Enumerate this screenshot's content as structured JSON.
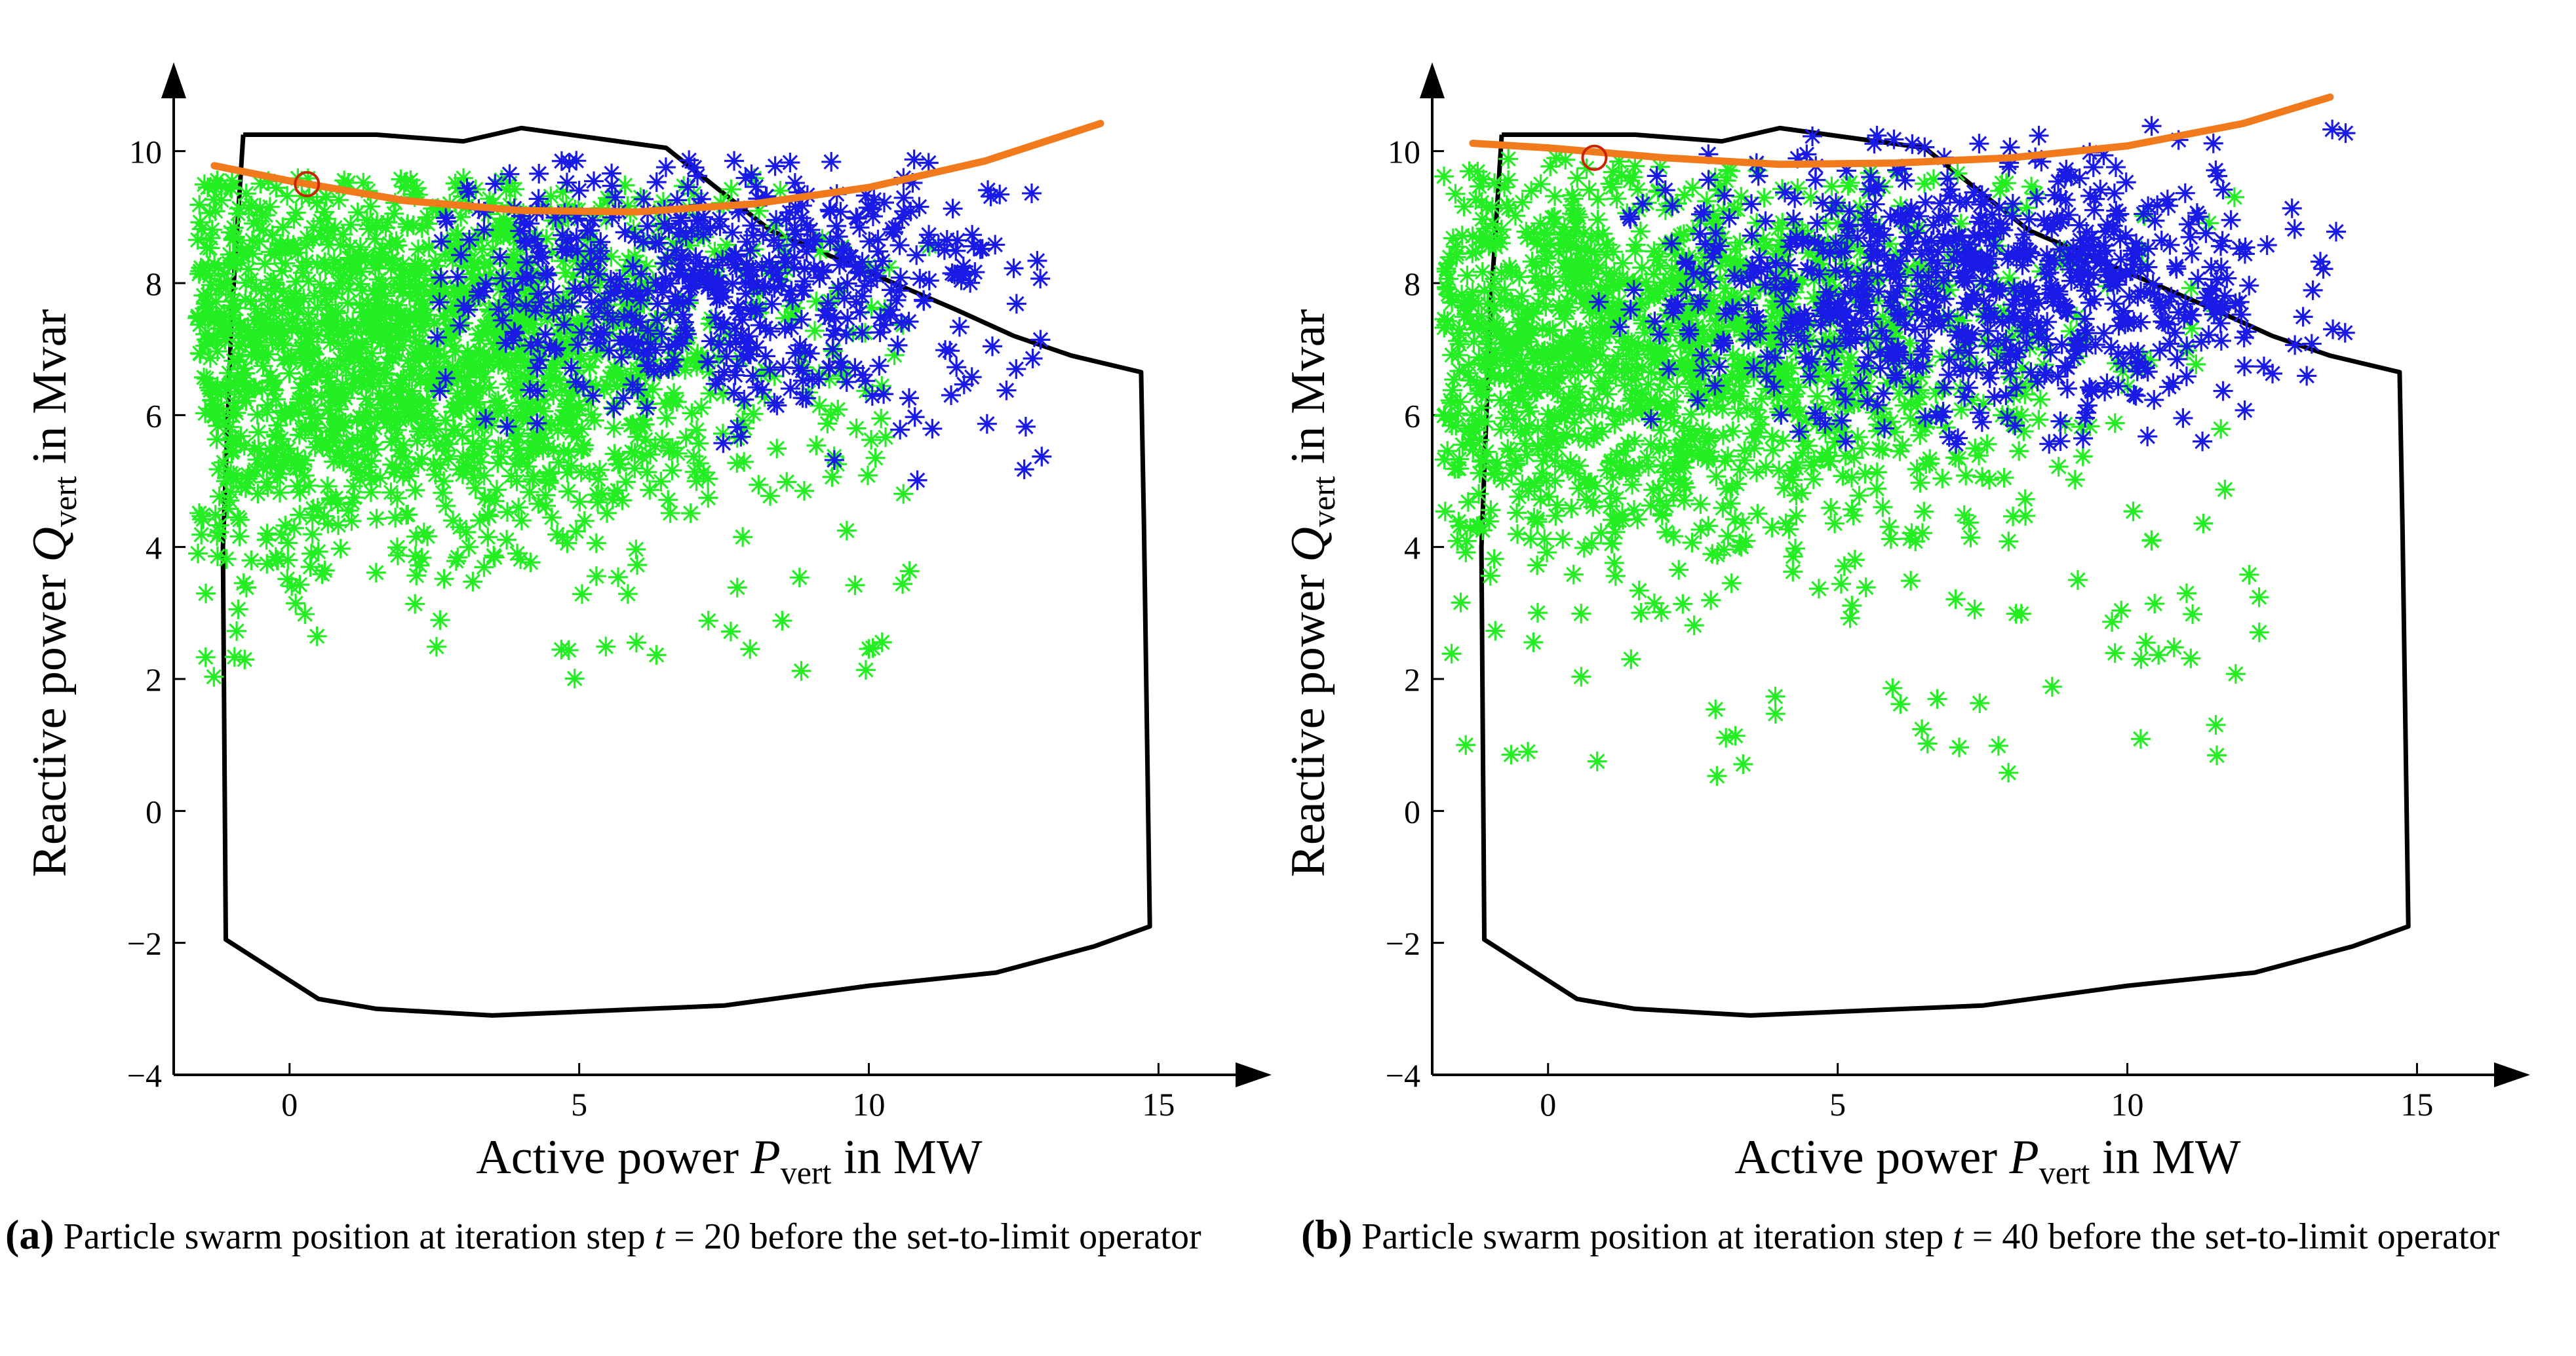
{
  "chart_data": [
    {
      "panel": "a",
      "type": "scatter",
      "xlabel": {
        "prefix": "Active power ",
        "var": "P",
        "sub": "vert",
        "suffix": " in MW"
      },
      "ylabel": {
        "prefix": "Reactive power ",
        "var": "Q",
        "sub": "vert",
        "suffix": " in Mvar"
      },
      "xlim": [
        -2,
        16.5
      ],
      "ylim": [
        -4,
        11
      ],
      "xticks": [
        0,
        5,
        10,
        15
      ],
      "yticks": [
        -4,
        -2,
        0,
        2,
        4,
        6,
        8,
        10
      ],
      "colors": {
        "green_particles": "#22ee22",
        "blue_particles": "#1a1ae6",
        "boundary": "#000000",
        "curve": "#f07a1c",
        "marker": "#cc2200"
      },
      "boundary": [
        [
          -0.8,
          10.25
        ],
        [
          1.5,
          10.25
        ],
        [
          3,
          10.15
        ],
        [
          4,
          10.35
        ],
        [
          6.5,
          10.05
        ],
        [
          8.3,
          8.8
        ],
        [
          11.5,
          7.6
        ],
        [
          12.5,
          7.2
        ],
        [
          13.5,
          6.9
        ],
        [
          14.7,
          6.65
        ],
        [
          14.75,
          4.3
        ],
        [
          14.85,
          -1.75
        ],
        [
          13.9,
          -2.05
        ],
        [
          12.2,
          -2.45
        ],
        [
          10,
          -2.65
        ],
        [
          7.5,
          -2.95
        ],
        [
          3.5,
          -3.1
        ],
        [
          1.5,
          -3
        ],
        [
          0.5,
          -2.85
        ],
        [
          -1.1,
          -1.95
        ],
        [
          -1.15,
          4
        ],
        [
          -1,
          7.5
        ],
        [
          -0.8,
          10.25
        ]
      ],
      "curve_points": [
        [
          -1.3,
          9.78
        ],
        [
          0,
          9.55
        ],
        [
          2,
          9.25
        ],
        [
          4,
          9.1
        ],
        [
          6,
          9.08
        ],
        [
          8,
          9.2
        ],
        [
          10,
          9.45
        ],
        [
          12,
          9.85
        ],
        [
          14,
          10.42
        ]
      ],
      "marker_point": [
        0.3,
        9.5
      ],
      "green_cluster": {
        "count": 1700,
        "seed": 11,
        "x_range": [
          -1.6,
          11.6
        ],
        "y_range": [
          2.0,
          9.6
        ]
      },
      "blue_cluster": {
        "count": 550,
        "seed": 23,
        "x_range": [
          2.5,
          13.0
        ],
        "y_range": [
          5.0,
          9.9
        ]
      }
    },
    {
      "panel": "b",
      "type": "scatter",
      "xlabel": {
        "prefix": "Active power ",
        "var": "P",
        "sub": "vert",
        "suffix": " in MW"
      },
      "ylabel": {
        "prefix": "Reactive power ",
        "var": "Q",
        "sub": "vert",
        "suffix": " in Mvar"
      },
      "xlim": [
        -2,
        16.5
      ],
      "ylim": [
        -4,
        11
      ],
      "xticks": [
        0,
        5,
        10,
        15
      ],
      "yticks": [
        -4,
        -2,
        0,
        2,
        4,
        6,
        8,
        10
      ],
      "colors": {
        "green_particles": "#22ee22",
        "blue_particles": "#1a1ae6",
        "boundary": "#000000",
        "curve": "#f07a1c",
        "marker": "#cc2200"
      },
      "boundary": [
        [
          -0.8,
          10.25
        ],
        [
          1.5,
          10.25
        ],
        [
          3,
          10.15
        ],
        [
          4,
          10.35
        ],
        [
          6.5,
          10.05
        ],
        [
          8.3,
          8.8
        ],
        [
          11.5,
          7.6
        ],
        [
          12.5,
          7.2
        ],
        [
          13.5,
          6.9
        ],
        [
          14.7,
          6.65
        ],
        [
          14.75,
          4.3
        ],
        [
          14.85,
          -1.75
        ],
        [
          13.9,
          -2.05
        ],
        [
          12.2,
          -2.45
        ],
        [
          10,
          -2.65
        ],
        [
          7.5,
          -2.95
        ],
        [
          3.5,
          -3.1
        ],
        [
          1.5,
          -3
        ],
        [
          0.5,
          -2.85
        ],
        [
          -1.1,
          -1.95
        ],
        [
          -1.15,
          4
        ],
        [
          -1,
          7.5
        ],
        [
          -0.8,
          10.25
        ]
      ],
      "curve_points": [
        [
          -1.3,
          10.12
        ],
        [
          0,
          10.05
        ],
        [
          2,
          9.9
        ],
        [
          4,
          9.8
        ],
        [
          6,
          9.82
        ],
        [
          8,
          9.9
        ],
        [
          10,
          10.08
        ],
        [
          12,
          10.42
        ],
        [
          13.5,
          10.82
        ]
      ],
      "marker_point": [
        0.8,
        9.9
      ],
      "green_cluster": {
        "count": 1500,
        "seed": 37,
        "x_range": [
          -1.8,
          12.3
        ],
        "y_range": [
          0.5,
          9.9
        ]
      },
      "blue_cluster": {
        "count": 750,
        "seed": 53,
        "x_range": [
          0.8,
          13.8
        ],
        "y_range": [
          5.5,
          10.5
        ]
      }
    }
  ],
  "captions": [
    {
      "tag": "(a)",
      "text_before": "Particle swarm position at iteration step ",
      "var": "t",
      "text_after": " = 20 before the set-to-limit operator"
    },
    {
      "tag": "(b)",
      "text_before": "Particle swarm position at iteration step ",
      "var": "t",
      "text_after": " = 40 before the set-to-limit operator"
    }
  ]
}
